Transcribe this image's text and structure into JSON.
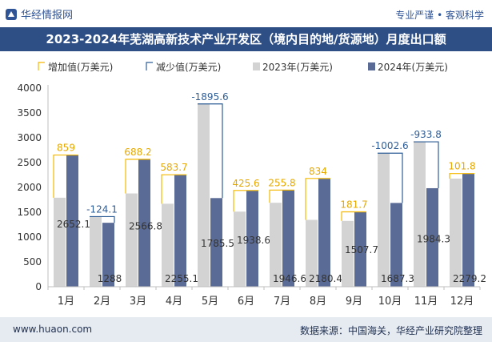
{
  "header": {
    "brand": "华经情报网",
    "slogan": "专业严谨 • 客观科学"
  },
  "footer": {
    "site": "www.huaon.com",
    "source": "数据来源：中国海关，华经产业研究院整理"
  },
  "colors": {
    "title_bg": "#2e4f86",
    "increase": "#f5b800",
    "decrease": "#2e5d96",
    "series_2023": "#d3d3d3",
    "series_2024": "#5a6b95"
  },
  "chart_data": {
    "type": "bar",
    "title": "2023-2024年芜湖高新技术产业开发区（境内目的地/货源地）月度出口额",
    "categories": [
      "1月",
      "2月",
      "3月",
      "4月",
      "5月",
      "6月",
      "7月",
      "8月",
      "9月",
      "10月",
      "11月",
      "12月"
    ],
    "series": [
      {
        "name": "2023年(万美元)",
        "values": [
          1793.1,
          1412.1,
          1878.6,
          1671.4,
          3681.1,
          1513.0,
          1690.8,
          1346.4,
          1326.0,
          2689.9,
          2918.1,
          2177.4
        ]
      },
      {
        "name": "2024年(万美元)",
        "values": [
          2652.1,
          1288,
          2566.8,
          2255.1,
          1785.5,
          1938.6,
          1946.6,
          2180.4,
          1507.7,
          1687.3,
          1984.3,
          2279.2
        ]
      }
    ],
    "change": {
      "increase_label": "增加值(万美元)",
      "decrease_label": "减少值(万美元)",
      "values": [
        "859",
        "-124.1",
        "688.2",
        "583.7",
        "-1895.6",
        "425.6",
        "255.8",
        "834",
        "181.7",
        "-1002.6",
        "-933.8",
        "101.8"
      ]
    },
    "bar_labels": [
      "2652.1",
      "1288",
      "2566.8",
      "2255.1",
      "1785.5",
      "1938.6",
      "1946.6",
      "2180.4",
      "1507.7",
      "1687.3",
      "1984.3",
      "2279.2"
    ],
    "yticks": [
      "0",
      "500",
      "1000",
      "1500",
      "2000",
      "2500",
      "3000",
      "3500",
      "4000"
    ],
    "ylim": [
      0,
      4000
    ],
    "legend_position": "top-left",
    "grid": false
  }
}
